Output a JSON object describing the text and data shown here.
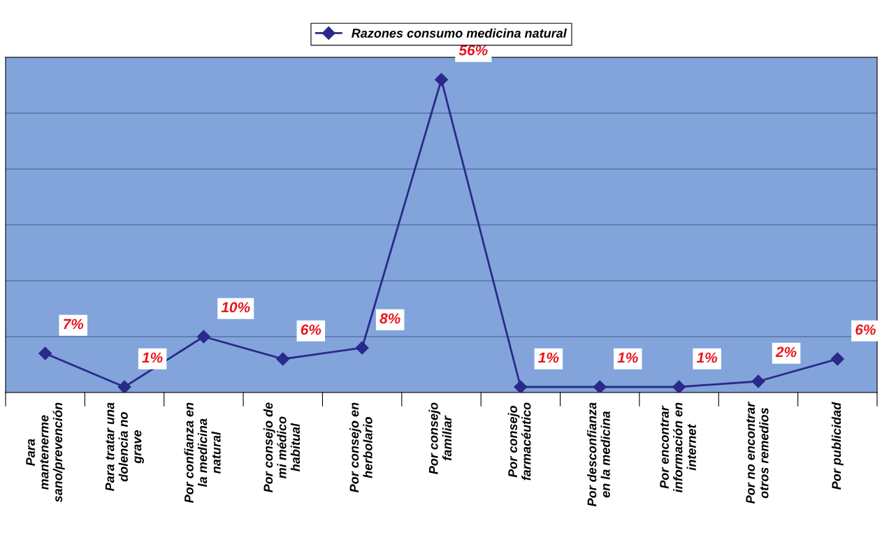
{
  "chart_data": {
    "type": "line",
    "categories": [
      "Para\nmantenerme\nsano/prevención",
      "Para tratar una\ndolencia no\ngrave",
      "Por confianza en\nla medicina\nnatural",
      "Por consejo de\nmi médico\nhabitual",
      "Por consejo en\nherbolario",
      "Por consejo\nfamiliar",
      "Por consejo\nfarmacéutico",
      "Por desconfianza\nen la medicina",
      "Por encontrar\ninformación en\ninternet",
      "Por no encontrar\notros remedios",
      "Por publicidad"
    ],
    "series": [
      {
        "name": "Razones consumo medicina natural",
        "color": "#2a2a8a",
        "values": [
          7,
          1,
          10,
          6,
          8,
          56,
          1,
          1,
          1,
          2,
          6
        ],
        "value_labels": [
          "7%",
          "1%",
          "10%",
          "6%",
          "8%",
          "56%",
          "1%",
          "1%",
          "1%",
          "2%",
          "6%"
        ]
      }
    ],
    "ylim": [
      0,
      60
    ],
    "yticks": [
      {
        "value": 0,
        "label": null
      },
      {
        "value": 10,
        "label": null
      },
      {
        "value": 20,
        "label": null
      },
      {
        "value": 30,
        "label": null
      },
      {
        "value": 40,
        "label": null
      },
      {
        "value": 50,
        "label": null
      },
      {
        "value": 60,
        "label": null
      }
    ],
    "tick_labels": "x",
    "grid": "y",
    "legend": "top",
    "marker": "diamond",
    "line_style": "solid"
  }
}
